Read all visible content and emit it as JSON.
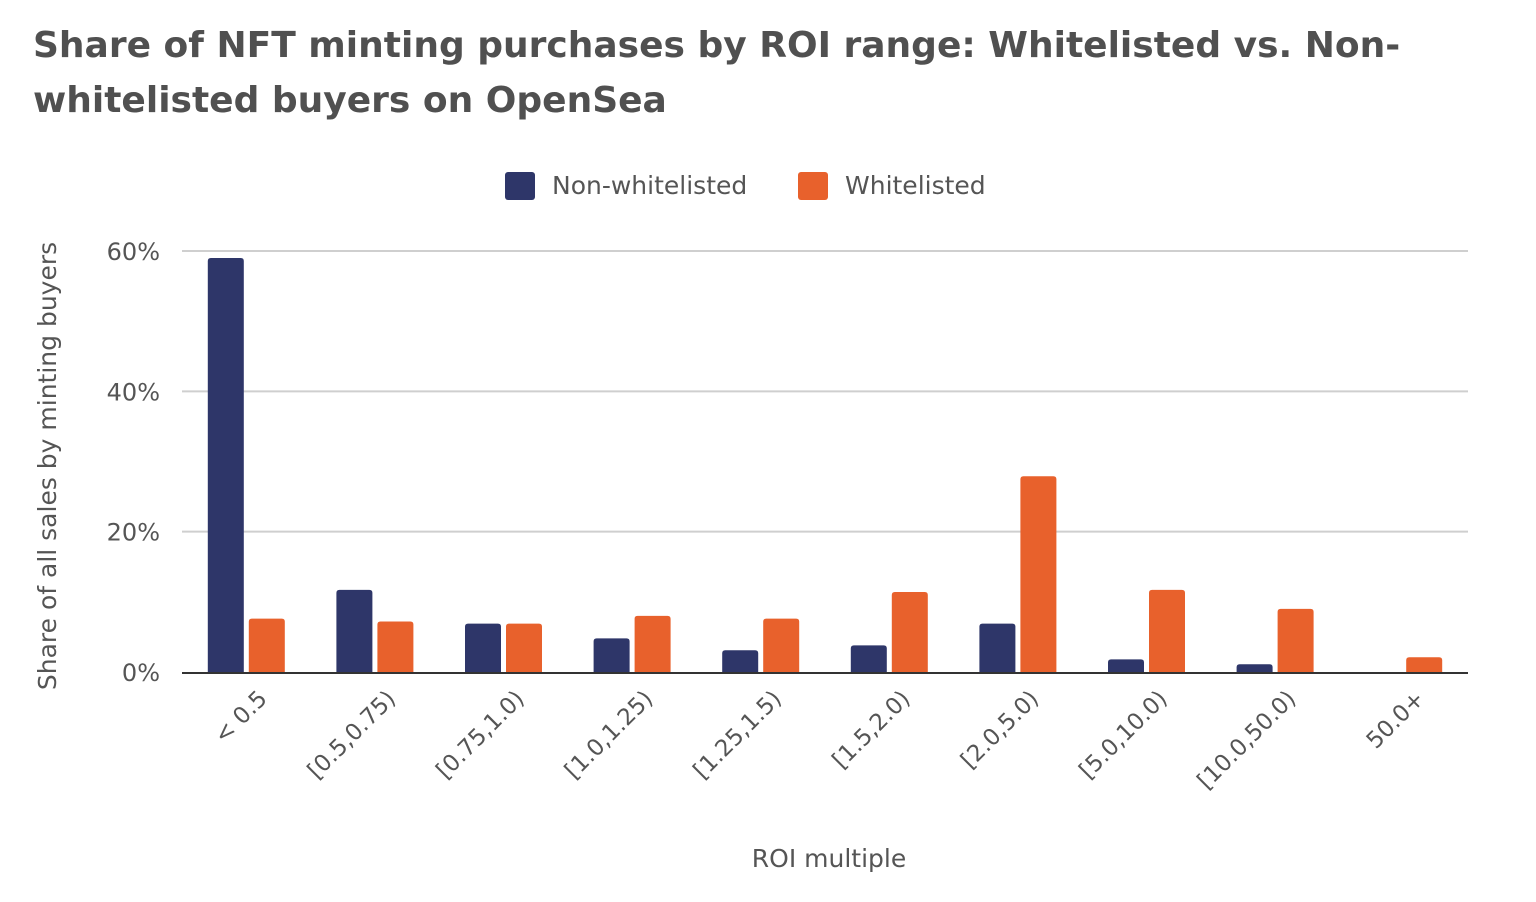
{
  "chart_data": {
    "type": "bar",
    "title": "Share of NFT minting purchases by ROI range: Whitelisted vs. Non-whitelisted buyers on OpenSea",
    "xlabel": "ROI multiple",
    "ylabel": "Share of all sales by minting buyers",
    "categories": [
      "< 0.5",
      "[0.5,0.75)",
      "[0.75,1.0)",
      "[1.0,1.25)",
      "[1.25,1.5)",
      "[1.5,2.0)",
      "[2.0,5.0)",
      "[5.0,10.0)",
      "[10.0,50.0)",
      "50.0+"
    ],
    "series": [
      {
        "name": "Non-whitelisted",
        "color": "#2e3669",
        "values": [
          59,
          11.7,
          6.9,
          4.8,
          3.1,
          3.8,
          6.9,
          1.8,
          1.1,
          0
        ]
      },
      {
        "name": "Whitelisted",
        "color": "#e8612c",
        "values": [
          7.6,
          7.2,
          6.9,
          8.0,
          7.6,
          11.4,
          27.9,
          11.7,
          9.0,
          2.1
        ]
      }
    ],
    "ylim": [
      0,
      60
    ],
    "yticks": [
      0,
      20,
      40,
      60
    ],
    "ytick_format": "%",
    "grid": true,
    "legend_position": "top-center"
  }
}
